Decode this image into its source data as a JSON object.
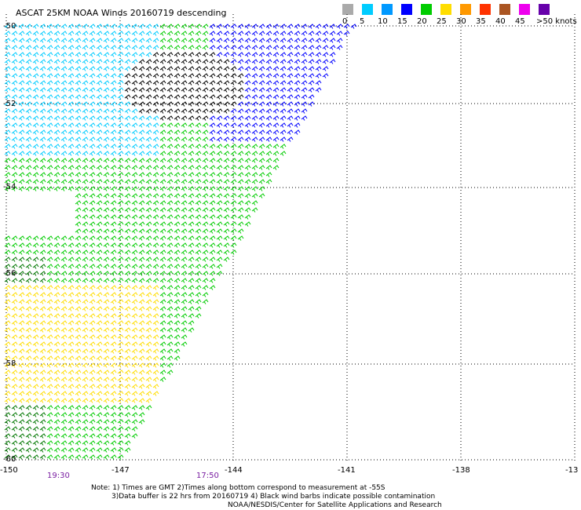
{
  "title": "ASCAT 25KM NOAA Winds 20160719 descending",
  "legend": {
    "bins": [
      {
        "label": "0",
        "color": "#555555"
      },
      {
        "label": "5",
        "color": "#00ccff"
      },
      {
        "label": "10",
        "color": "#0099ff"
      },
      {
        "label": "15",
        "color": "#0000ff"
      },
      {
        "label": "20",
        "color": "#00cc00"
      },
      {
        "label": "25",
        "color": "#ffdd00"
      },
      {
        "label": "30",
        "color": "#ff9900"
      },
      {
        "label": "35",
        "color": "#ff3300"
      },
      {
        "label": "40",
        "color": "#aa5522"
      },
      {
        "label": "45",
        "color": "#ee00ee"
      },
      {
        "label": ">50 knots",
        "color": "#6600aa"
      }
    ],
    "extra_swatch_color": "#aaaaaa"
  },
  "map": {
    "lat_labels": [
      "-50",
      "-52",
      "-54",
      "-56",
      "-58",
      "-60"
    ],
    "lon_labels": [
      "-150",
      "-147",
      "-144",
      "-141",
      "-138",
      "-13"
    ],
    "time_labels": [
      "19:30",
      "17:50"
    ],
    "grid_style": "dotted",
    "barb_colors": {
      "black": "#000000",
      "cyan": "#00ccff",
      "blue": "#0000ff",
      "green": "#00cc00",
      "dark_green": "#007700",
      "yellow": "#ffdd00"
    }
  },
  "notes": {
    "line1": "Note: 1) Times are GMT 2)Times along bottom correspond to measurement at -55S",
    "line2": "3)Data buffer is 22 hrs from 20160719 4) Black wind barbs indicate possible contamination",
    "line3": "NOAA/NESDIS/Center for Satellite Applications and Research"
  }
}
